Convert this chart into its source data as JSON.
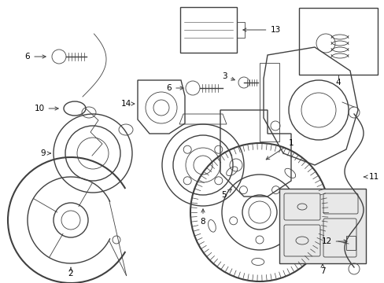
{
  "bg_color": "#ffffff",
  "line_color": "#404040",
  "fig_width": 4.89,
  "fig_height": 3.6,
  "dpi": 100,
  "font_size": 7.5
}
